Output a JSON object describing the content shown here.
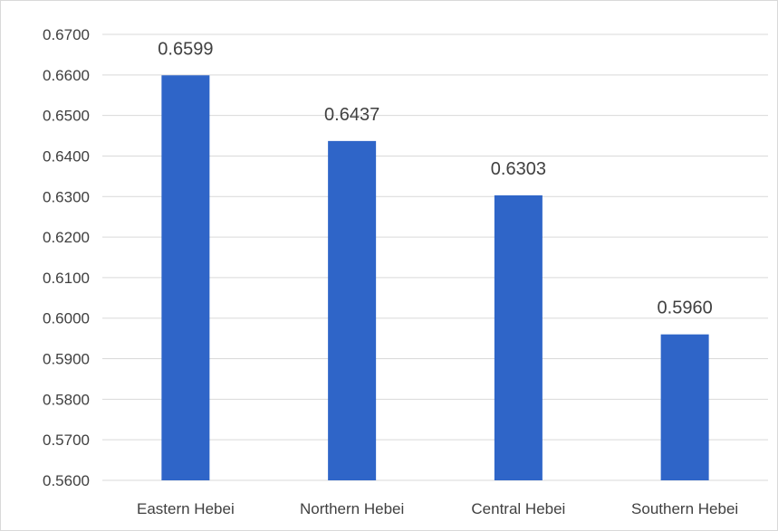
{
  "chart_data": {
    "type": "bar",
    "title": "",
    "xlabel": "",
    "ylabel": "",
    "categories": [
      "Eastern Hebei",
      "Northern Hebei",
      "Central Hebei",
      "Southern Hebei"
    ],
    "values": [
      0.6599,
      0.6437,
      0.6303,
      0.596
    ],
    "data_labels": [
      "0.6599",
      "0.6437",
      "0.6303",
      "0.5960"
    ],
    "ylim": [
      0.56,
      0.67
    ],
    "y_ticks": [
      0.56,
      0.57,
      0.58,
      0.59,
      0.6,
      0.61,
      0.62,
      0.63,
      0.64,
      0.65,
      0.66,
      0.67
    ],
    "y_tick_labels": [
      "0.5600",
      "0.5700",
      "0.5800",
      "0.5900",
      "0.6000",
      "0.6100",
      "0.6200",
      "0.6300",
      "0.6400",
      "0.6500",
      "0.6600",
      "0.6700"
    ],
    "grid": true,
    "legend": "none",
    "bar_color": "#2f65c8",
    "grid_color": "#d9d9d9"
  }
}
